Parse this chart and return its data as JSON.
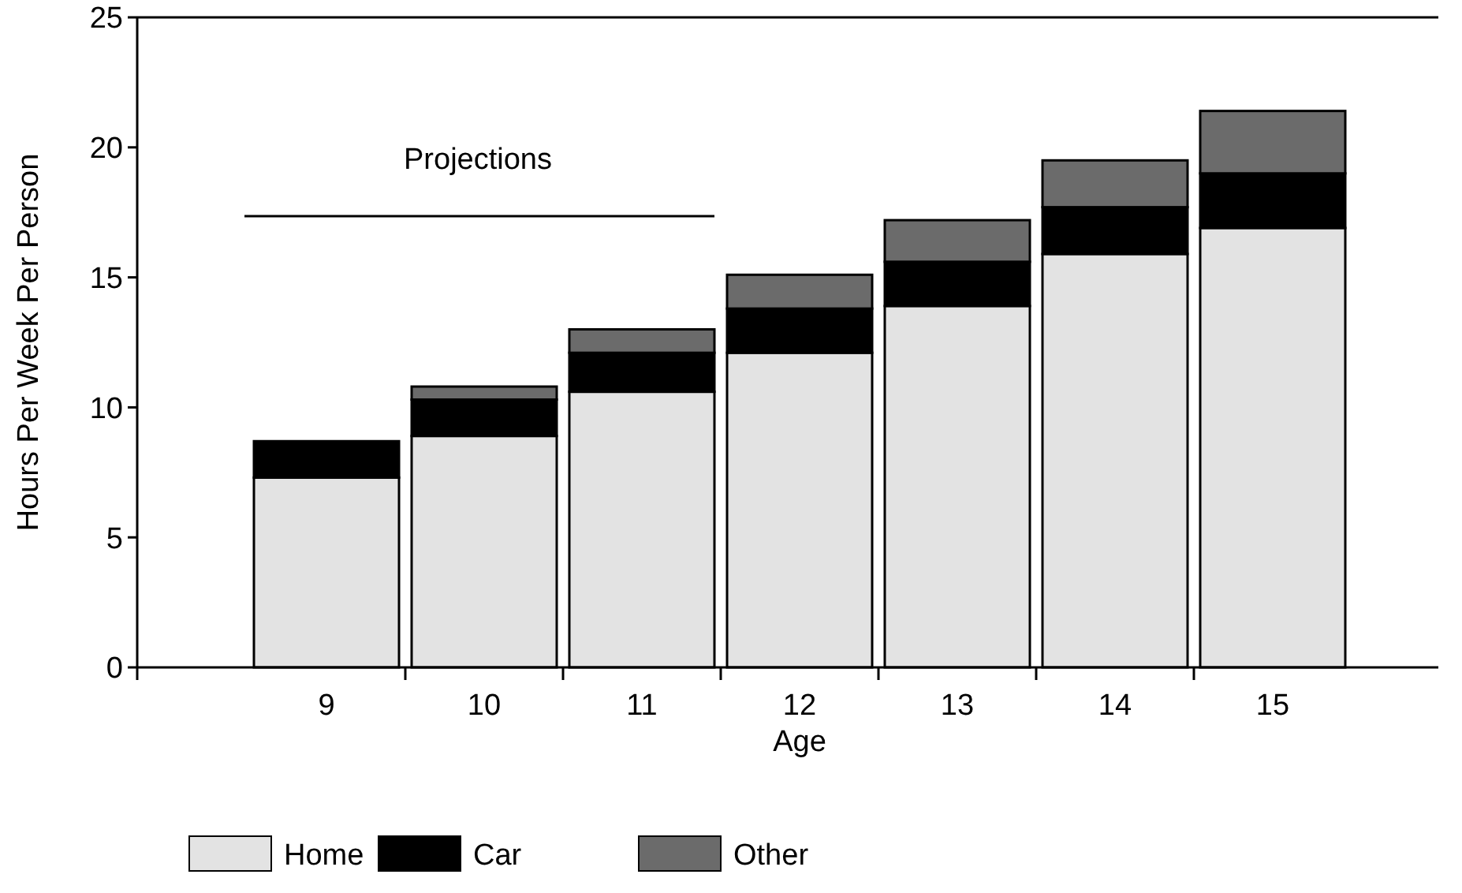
{
  "chart_data": {
    "type": "bar",
    "stacked": true,
    "xlabel": "Age",
    "ylabel": "Hours Per Week Per Person",
    "categories": [
      "9",
      "10",
      "11",
      "12",
      "13",
      "14",
      "15"
    ],
    "series": [
      {
        "name": "Home",
        "color": "#e3e3e3",
        "values": [
          7.3,
          8.9,
          10.6,
          12.1,
          13.9,
          15.9,
          16.9
        ]
      },
      {
        "name": "Car",
        "color": "#000000",
        "values": [
          1.4,
          1.4,
          1.5,
          1.7,
          1.7,
          1.8,
          2.1
        ]
      },
      {
        "name": "Other",
        "color": "#6b6b6b",
        "values": [
          0,
          0.5,
          0.9,
          1.3,
          1.6,
          1.8,
          2.4
        ]
      }
    ],
    "ylim": [
      0,
      25
    ],
    "yticks": [
      0,
      5,
      10,
      15,
      20,
      25
    ],
    "grid": false,
    "legend": "bottom",
    "annotations": [
      "Projections"
    ]
  }
}
